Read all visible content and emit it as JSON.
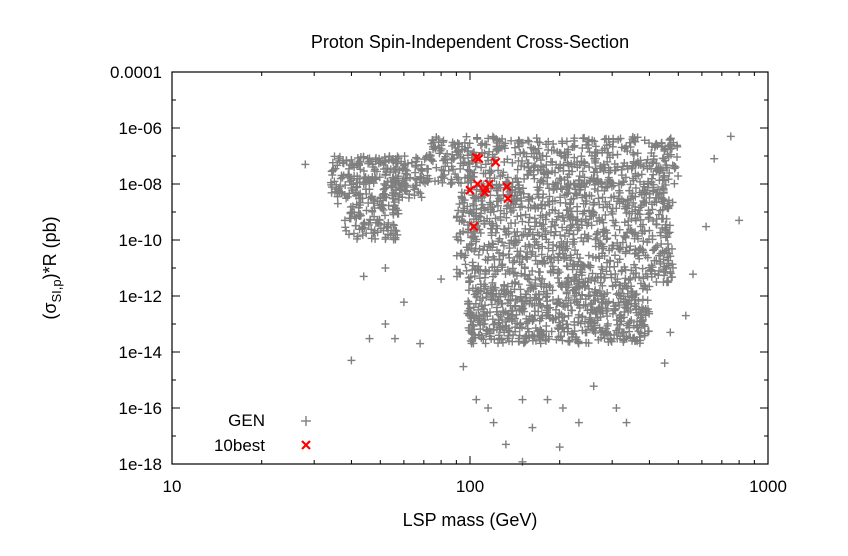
{
  "chart_data": {
    "type": "scatter",
    "title": "Proton Spin-Independent Cross-Section",
    "xlabel": "LSP mass (GeV)",
    "ylabel": "(σSI,p)*R (pb)",
    "ylabel_parts": {
      "prefix": "(σ",
      "subscript": "SI,p",
      "suffix": ")*R (pb)"
    },
    "x_scale": "log",
    "y_scale": "log",
    "xlim": [
      10,
      1000
    ],
    "ylim": [
      1e-18,
      0.0001
    ],
    "x_ticks": [
      {
        "value": 10,
        "label": "10"
      },
      {
        "value": 100,
        "label": "100"
      },
      {
        "value": 1000,
        "label": "1000"
      }
    ],
    "y_ticks": [
      {
        "value": 0.0001,
        "label": "0.0001"
      },
      {
        "value": 1e-06,
        "label": "1e-06"
      },
      {
        "value": 1e-08,
        "label": "1e-08"
      },
      {
        "value": 1e-10,
        "label": "1e-10"
      },
      {
        "value": 1e-12,
        "label": "1e-12"
      },
      {
        "value": 1e-14,
        "label": "1e-14"
      },
      {
        "value": 1e-16,
        "label": "1e-16"
      },
      {
        "value": 1e-18,
        "label": "1e-18"
      }
    ],
    "legend_position": "bottom-left",
    "series": [
      {
        "name": "GEN",
        "marker": "plus",
        "color": "#7f7f7f",
        "dense_regions": [
          {
            "xmin": 34,
            "xmax": 70,
            "ymin": 3e-09,
            "ymax": 1e-07
          },
          {
            "xmin": 38,
            "xmax": 58,
            "ymin": 1e-10,
            "ymax": 3e-09
          },
          {
            "xmin": 70,
            "xmax": 500,
            "ymin": 1e-08,
            "ymax": 5e-07
          },
          {
            "xmin": 90,
            "xmax": 480,
            "ymin": 3e-12,
            "ymax": 1e-08
          },
          {
            "xmin": 98,
            "xmax": 400,
            "ymin": 2e-14,
            "ymax": 3e-12
          }
        ],
        "outliers": [
          [
            28,
            5e-08
          ],
          [
            750,
            5e-07
          ],
          [
            660,
            8e-08
          ],
          [
            800,
            5e-10
          ],
          [
            40,
            5e-15
          ],
          [
            46,
            3e-14
          ],
          [
            52,
            1e-13
          ],
          [
            56,
            3e-14
          ],
          [
            68,
            2e-14
          ],
          [
            105,
            2e-16
          ],
          [
            115,
            1e-16
          ],
          [
            120,
            3e-17
          ],
          [
            132,
            5e-18
          ],
          [
            150,
            2e-16
          ],
          [
            162,
            2e-17
          ],
          [
            182,
            2e-16
          ],
          [
            205,
            1e-16
          ],
          [
            232,
            3e-17
          ],
          [
            310,
            1e-16
          ],
          [
            335,
            3e-17
          ],
          [
            470,
            5e-14
          ],
          [
            530,
            2e-13
          ],
          [
            450,
            4e-15
          ],
          [
            52,
            1e-11
          ],
          [
            80,
            4e-12
          ],
          [
            95,
            3e-15
          ],
          [
            260,
            6e-16
          ],
          [
            560,
            6e-12
          ],
          [
            620,
            3e-10
          ],
          [
            36,
            2e-09
          ],
          [
            44,
            5e-12
          ],
          [
            60,
            6e-13
          ],
          [
            150,
            1.2e-18
          ],
          [
            200,
            4e-18
          ]
        ]
      },
      {
        "name": "10best",
        "marker": "x",
        "color": "#ff0000",
        "points": [
          [
            105,
            9e-08
          ],
          [
            107,
            8e-08
          ],
          [
            122,
            6e-08
          ],
          [
            100,
            6e-09
          ],
          [
            106,
            1e-08
          ],
          [
            113,
            7e-09
          ],
          [
            116,
            1e-08
          ],
          [
            112,
            5e-09
          ],
          [
            133,
            8e-09
          ],
          [
            134,
            3e-09
          ],
          [
            103,
            3e-10
          ]
        ]
      }
    ]
  }
}
